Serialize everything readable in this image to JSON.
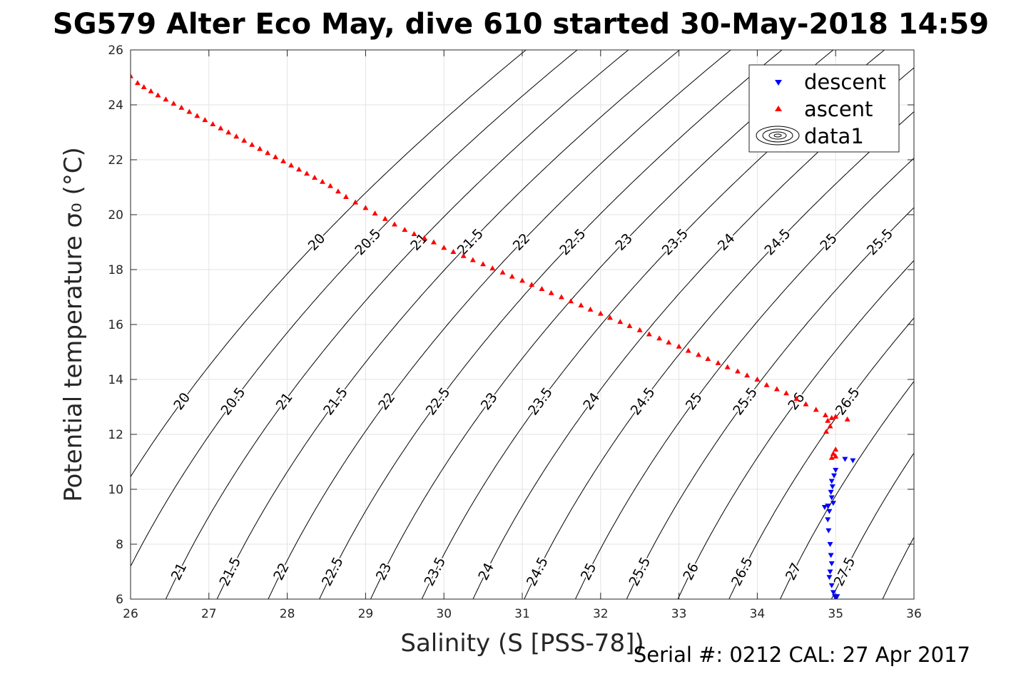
{
  "chart_data": {
    "type": "scatter",
    "title": "SG579 Alter Eco May, dive 610 started 30-May-2018 14:59",
    "xlabel": "Salinity (S [PSS-78])",
    "ylabel": "Potential temperature σ₀ (°C)",
    "xlim": [
      26,
      36
    ],
    "ylim": [
      6,
      26
    ],
    "xticks": [
      26,
      27,
      28,
      29,
      30,
      31,
      32,
      33,
      34,
      35,
      36
    ],
    "yticks": [
      6,
      8,
      10,
      12,
      14,
      16,
      18,
      20,
      22,
      24,
      26
    ],
    "grid": true,
    "legend_position": "top-right",
    "contour_levels": [
      20,
      20.5,
      21,
      21.5,
      22,
      22.5,
      23,
      23.5,
      24,
      24.5,
      25,
      25.5,
      26,
      26.5,
      27,
      27.5,
      28
    ],
    "series": [
      {
        "name": "descent",
        "marker": "triangle-down",
        "color": "#0000ff",
        "points": [
          [
            35.12,
            11.1
          ],
          [
            35.22,
            11.05
          ],
          [
            35.0,
            10.7
          ],
          [
            34.98,
            10.5
          ],
          [
            34.95,
            10.3
          ],
          [
            34.96,
            10.1
          ],
          [
            34.94,
            9.9
          ],
          [
            34.95,
            9.7
          ],
          [
            34.97,
            9.5
          ],
          [
            34.9,
            9.4
          ],
          [
            34.86,
            9.35
          ],
          [
            34.92,
            9.2
          ],
          [
            34.9,
            8.9
          ],
          [
            34.91,
            8.5
          ],
          [
            34.93,
            8.0
          ],
          [
            34.94,
            7.6
          ],
          [
            34.95,
            7.3
          ],
          [
            34.93,
            7.0
          ],
          [
            34.92,
            6.8
          ],
          [
            34.95,
            6.5
          ],
          [
            34.97,
            6.25
          ],
          [
            34.99,
            6.1
          ],
          [
            35.0,
            6.05
          ],
          [
            35.02,
            6.1
          ]
        ]
      },
      {
        "name": "ascent",
        "marker": "triangle-up",
        "color": "#ff0000",
        "points": [
          [
            26.0,
            25.05
          ],
          [
            26.09,
            24.8
          ],
          [
            26.17,
            24.65
          ],
          [
            26.26,
            24.5
          ],
          [
            26.35,
            24.35
          ],
          [
            26.45,
            24.2
          ],
          [
            26.55,
            24.05
          ],
          [
            26.65,
            23.9
          ],
          [
            26.75,
            23.75
          ],
          [
            26.85,
            23.6
          ],
          [
            26.95,
            23.45
          ],
          [
            27.05,
            23.3
          ],
          [
            27.15,
            23.15
          ],
          [
            27.25,
            23.0
          ],
          [
            27.35,
            22.85
          ],
          [
            27.45,
            22.7
          ],
          [
            27.55,
            22.55
          ],
          [
            27.65,
            22.4
          ],
          [
            27.75,
            22.25
          ],
          [
            27.85,
            22.1
          ],
          [
            27.95,
            21.95
          ],
          [
            28.05,
            21.8
          ],
          [
            28.15,
            21.65
          ],
          [
            28.25,
            21.5
          ],
          [
            28.35,
            21.35
          ],
          [
            28.45,
            21.2
          ],
          [
            28.55,
            21.05
          ],
          [
            28.65,
            20.85
          ],
          [
            28.75,
            20.65
          ],
          [
            28.87,
            20.45
          ],
          [
            29.0,
            20.25
          ],
          [
            29.12,
            20.05
          ],
          [
            29.25,
            19.85
          ],
          [
            29.37,
            19.65
          ],
          [
            29.5,
            19.45
          ],
          [
            29.62,
            19.3
          ],
          [
            29.75,
            19.15
          ],
          [
            29.87,
            19.0
          ],
          [
            30.0,
            18.8
          ],
          [
            30.12,
            18.65
          ],
          [
            30.25,
            18.5
          ],
          [
            30.37,
            18.35
          ],
          [
            30.5,
            18.2
          ],
          [
            30.62,
            18.05
          ],
          [
            30.75,
            17.9
          ],
          [
            30.87,
            17.75
          ],
          [
            31.0,
            17.6
          ],
          [
            31.12,
            17.45
          ],
          [
            31.25,
            17.3
          ],
          [
            31.37,
            17.15
          ],
          [
            31.5,
            17.0
          ],
          [
            31.62,
            16.85
          ],
          [
            31.75,
            16.7
          ],
          [
            31.87,
            16.55
          ],
          [
            32.0,
            16.4
          ],
          [
            32.12,
            16.25
          ],
          [
            32.25,
            16.1
          ],
          [
            32.37,
            15.95
          ],
          [
            32.5,
            15.8
          ],
          [
            32.62,
            15.65
          ],
          [
            32.75,
            15.5
          ],
          [
            32.87,
            15.35
          ],
          [
            33.0,
            15.2
          ],
          [
            33.12,
            15.05
          ],
          [
            33.25,
            14.9
          ],
          [
            33.37,
            14.75
          ],
          [
            33.5,
            14.6
          ],
          [
            33.62,
            14.45
          ],
          [
            33.75,
            14.3
          ],
          [
            33.87,
            14.15
          ],
          [
            34.0,
            14.0
          ],
          [
            34.12,
            13.8
          ],
          [
            34.25,
            13.65
          ],
          [
            34.37,
            13.5
          ],
          [
            34.5,
            13.3
          ],
          [
            34.62,
            13.1
          ],
          [
            34.75,
            12.9
          ],
          [
            34.87,
            12.7
          ],
          [
            34.95,
            12.6
          ],
          [
            35.0,
            12.65
          ],
          [
            34.9,
            12.5
          ],
          [
            34.93,
            12.3
          ],
          [
            34.88,
            12.1
          ],
          [
            35.15,
            12.55
          ],
          [
            35.0,
            11.45
          ],
          [
            34.97,
            11.3
          ],
          [
            35.0,
            11.2
          ],
          [
            34.95,
            11.15
          ]
        ]
      }
    ],
    "contour_series_name": "data1"
  },
  "footer_text": "Serial #: 0212  CAL: 27 Apr 2017"
}
